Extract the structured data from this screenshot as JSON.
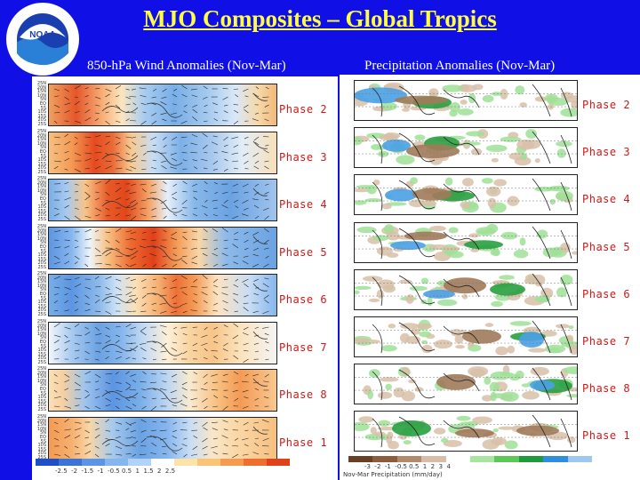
{
  "title": "MJO Composites – Global Tropics",
  "wind_subtitle": "850-hPa Wind Anomalies (Nov-Mar)",
  "precip_subtitle": "Precipitation Anomalies (Nov-Mar)",
  "logo": {
    "text_top": "NATIONAL OCEANIC AND ATMOSPHERIC ADMINISTRATION",
    "text_bottom": "U.S. DEPARTMENT OF COMMERCE",
    "center": "NOAA"
  },
  "phases": [
    "Phase 2",
    "Phase 3",
    "Phase 4",
    "Phase 5",
    "Phase 6",
    "Phase 7",
    "Phase 8",
    "Phase 1"
  ],
  "lat_ticks": [
    "25N",
    "20N",
    "15N",
    "10N",
    "5N",
    "EQ",
    "5S",
    "10S",
    "15S",
    "20S",
    "25S"
  ],
  "wind_colorbar_ticks": "-2.5  -2  -1.5  -1  -0.5 0.5  1  1.5  2  2.5",
  "precip_colorbar_ticks": "-3  -2  -1  -0.5 0.5  1  2  3  4",
  "precip_caption": "Nov-Mar Precipitation (mm/day)",
  "colors": {
    "background": "#1010e6",
    "title": "#ffff40",
    "phase_label": "#d01818"
  }
}
